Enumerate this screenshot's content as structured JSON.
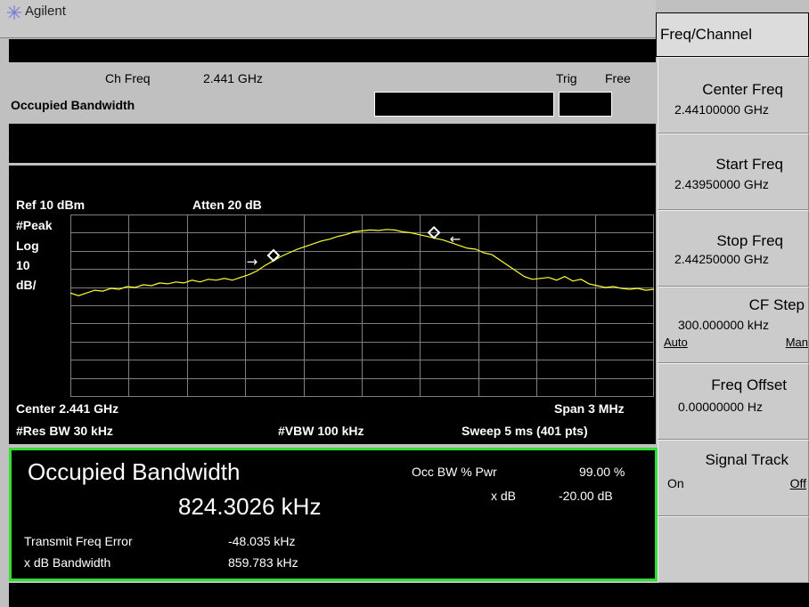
{
  "header": {
    "brand": "Agilent"
  },
  "info": {
    "ch_freq_label": "Ch Freq",
    "ch_freq_value": "2.441 GHz",
    "trig_label": "Trig",
    "trig_value": "Free",
    "mode_title": "Occupied Bandwidth"
  },
  "graph": {
    "ref": "Ref 10 dBm",
    "atten": "Atten 20 dB",
    "detector": "#Peak",
    "scale_type": "Log",
    "scale_value": "10",
    "scale_unit": "dB/",
    "center": "Center 2.441 GHz",
    "span": "Span 3 MHz",
    "rbw": "#Res BW 30 kHz",
    "vbw": "#VBW 100 kHz",
    "sweep": "Sweep 5 ms (401 pts)"
  },
  "results": {
    "title": "Occupied Bandwidth",
    "value": "824.3026 kHz",
    "occ_pwr_label": "Occ BW % Pwr",
    "occ_pwr_value": "99.00 %",
    "xdb_label": "x dB",
    "xdb_value": "-20.00 dB",
    "tfe_label": "Transmit Freq Error",
    "tfe_value": "-48.035 kHz",
    "xdb_bw_label": "x dB Bandwidth",
    "xdb_bw_value": "859.783 kHz"
  },
  "softkeys": {
    "menu_title": "Freq/Channel",
    "center_freq": {
      "label": "Center Freq",
      "value": "2.44100000 GHz"
    },
    "start_freq": {
      "label": "Start Freq",
      "value": "2.43950000 GHz"
    },
    "stop_freq": {
      "label": "Stop Freq",
      "value": "2.44250000 GHz"
    },
    "cf_step": {
      "label": "CF Step",
      "value": "300.000000 kHz",
      "opt1": "Auto",
      "opt2": "Man"
    },
    "freq_offset": {
      "label": "Freq Offset",
      "value": "0.00000000  Hz"
    },
    "signal_track": {
      "label": "Signal Track",
      "opt1": "On",
      "opt2": "Off"
    }
  },
  "colors": {
    "trace": "#ffff33",
    "result_border": "#33dd33",
    "grid": "#7f7f7f"
  },
  "chart_data": {
    "type": "line",
    "x_start_ghz": 2.4395,
    "x_stop_ghz": 2.4425,
    "y_top_dbm": 10,
    "y_scale_db_per_div": 10,
    "y_divisions": 10,
    "points_dbm": [
      -33,
      -34.5,
      -33,
      -31.5,
      -32,
      -30.5,
      -31,
      -29.5,
      -30,
      -28.5,
      -29,
      -27.5,
      -28,
      -27,
      -27.5,
      -26,
      -27,
      -25.5,
      -26,
      -25,
      -26,
      -24.5,
      -23,
      -21,
      -18,
      -15.5,
      -13,
      -11,
      -9,
      -7.5,
      -6,
      -4.5,
      -3.5,
      -2,
      -1,
      0.5,
      1,
      1.5,
      1.2,
      1.8,
      1.5,
      0.5,
      0,
      -1,
      -2,
      -3,
      -4,
      -5.5,
      -7,
      -8.5,
      -9,
      -11,
      -12,
      -15,
      -18,
      -21,
      -24,
      -25.5,
      -25,
      -24.5,
      -26,
      -24,
      -26.5,
      -25.5,
      -28,
      -29,
      -30,
      -29.5,
      -30.5,
      -31,
      -30.5,
      -31.5,
      -31
    ]
  }
}
